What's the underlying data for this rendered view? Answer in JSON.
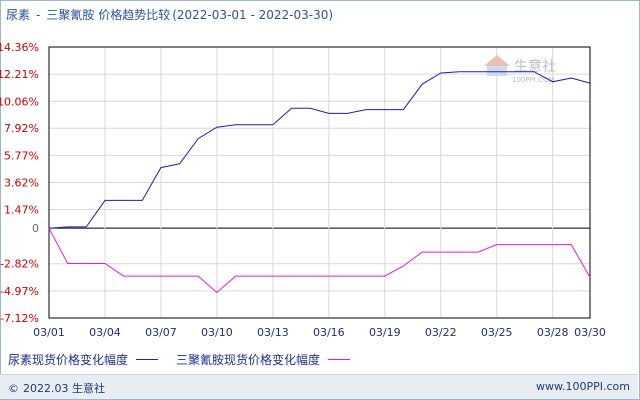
{
  "title": {
    "product_a": "尿素",
    "separator": "-",
    "product_b": "三聚氰胺",
    "suffix": "价格趋势比较",
    "period": "(2022-03-01 - 2022-03-30)"
  },
  "watermark": {
    "brand": "生意社",
    "site": "100PPI.COM"
  },
  "footer": {
    "copyright_icon": "copyright-icon",
    "left_text": "2022.03 生意社",
    "right_text": "www.100PPI.com"
  },
  "colors": {
    "series_a": "#1f1fbf",
    "series_b": "#e01ee0",
    "pos_tick": "#cc0000",
    "neg_tick": "#cc0000",
    "zero_tick": "#666666",
    "grid": "#d9d9d9",
    "axis": "#000000"
  },
  "chart_data": {
    "type": "line",
    "x": [
      "03/01",
      "03/02",
      "03/03",
      "03/04",
      "03/05",
      "03/06",
      "03/07",
      "03/08",
      "03/09",
      "03/10",
      "03/11",
      "03/12",
      "03/13",
      "03/14",
      "03/15",
      "03/16",
      "03/17",
      "03/18",
      "03/19",
      "03/20",
      "03/21",
      "03/22",
      "03/23",
      "03/24",
      "03/25",
      "03/26",
      "03/27",
      "03/28",
      "03/29",
      "03/30"
    ],
    "x_tick_labels": [
      "03/01",
      "03/04",
      "03/07",
      "03/10",
      "03/13",
      "03/16",
      "03/19",
      "03/22",
      "03/25",
      "03/28",
      "03/30"
    ],
    "y_ticks": [
      "14.36%",
      "12.21%",
      "10.06%",
      "7.92%",
      "5.77%",
      "3.62%",
      "1.47%",
      "0",
      "-2.82%",
      "-4.97%",
      "-7.12%"
    ],
    "y_tick_values": [
      14.36,
      12.21,
      10.06,
      7.92,
      5.77,
      3.62,
      1.47,
      0,
      -2.82,
      -4.97,
      -7.12
    ],
    "ylim": [
      -7.12,
      14.36
    ],
    "grid": true,
    "legend_position": "bottom-left",
    "series": [
      {
        "name": "尿素现货价格变化幅度",
        "values": [
          0,
          0.1,
          0.1,
          2.2,
          2.2,
          2.2,
          4.8,
          5.1,
          7.1,
          8.0,
          8.2,
          8.2,
          8.2,
          9.5,
          9.5,
          9.1,
          9.1,
          9.4,
          9.4,
          9.4,
          11.4,
          12.3,
          12.4,
          12.4,
          12.4,
          12.4,
          12.4,
          11.6,
          11.9,
          11.5
        ]
      },
      {
        "name": "三聚氰胺现货价格变化幅度",
        "values": [
          0,
          -2.8,
          -2.8,
          -2.8,
          -3.8,
          -3.8,
          -3.8,
          -3.8,
          -3.8,
          -5.1,
          -3.8,
          -3.8,
          -3.8,
          -3.8,
          -3.8,
          -3.8,
          -3.8,
          -3.8,
          -3.8,
          -3.0,
          -1.9,
          -1.9,
          -1.9,
          -1.9,
          -1.3,
          -1.3,
          -1.3,
          -1.3,
          -1.3,
          -3.9
        ]
      }
    ]
  }
}
